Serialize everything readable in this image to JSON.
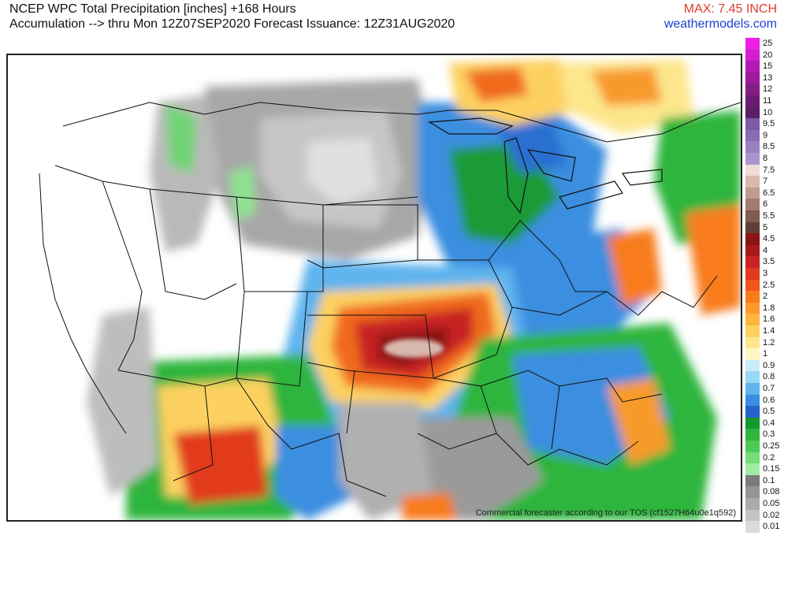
{
  "header": {
    "title_line1": "NCEP WPC Total Precipitation [inches] +168 Hours",
    "title_line2": "Accumulation --> thru Mon 12Z07SEP2020   Forecast Issuance: 12Z31AUG2020",
    "max_label": "MAX: 7.45 INCH",
    "site_label": "weathermodels.com"
  },
  "map": {
    "tos_note": "Commercial forecaster according to our TOS (cf1527H64u0e1q592)"
  },
  "legend": {
    "items": [
      {
        "label": "25",
        "color": "#ee1ee8"
      },
      {
        "label": "20",
        "color": "#d31dcf"
      },
      {
        "label": "15",
        "color": "#b619b3"
      },
      {
        "label": "13",
        "color": "#9c1a9c"
      },
      {
        "label": "12",
        "color": "#841d86"
      },
      {
        "label": "11",
        "color": "#6b1c73"
      },
      {
        "label": "10",
        "color": "#5a1e66"
      },
      {
        "label": "9.5",
        "color": "#7b5aa6"
      },
      {
        "label": "9",
        "color": "#8a6cb4"
      },
      {
        "label": "8.5",
        "color": "#9a80c0"
      },
      {
        "label": "8",
        "color": "#ab95cd"
      },
      {
        "label": "7.5",
        "color": "#efdcd3"
      },
      {
        "label": "7",
        "color": "#d8b8ad"
      },
      {
        "label": "6.5",
        "color": "#c09a8c"
      },
      {
        "label": "6",
        "color": "#a47b6f"
      },
      {
        "label": "5.5",
        "color": "#7f5b52"
      },
      {
        "label": "5",
        "color": "#5f3f38"
      },
      {
        "label": "4.5",
        "color": "#8a1414"
      },
      {
        "label": "4",
        "color": "#a81a1a"
      },
      {
        "label": "3.5",
        "color": "#c82424"
      },
      {
        "label": "3",
        "color": "#e23a1f"
      },
      {
        "label": "2.5",
        "color": "#f0561a"
      },
      {
        "label": "2",
        "color": "#f87b1e"
      },
      {
        "label": "1.8",
        "color": "#fc9a2a"
      },
      {
        "label": "1.6",
        "color": "#fdb53c"
      },
      {
        "label": "1.4",
        "color": "#fdd160"
      },
      {
        "label": "1.2",
        "color": "#fde68c"
      },
      {
        "label": "1",
        "color": "#fef6c4"
      },
      {
        "label": "0.9",
        "color": "#c8ecfb"
      },
      {
        "label": "0.8",
        "color": "#98d8f6"
      },
      {
        "label": "0.7",
        "color": "#5fb4ee"
      },
      {
        "label": "0.6",
        "color": "#3a8ee0"
      },
      {
        "label": "0.5",
        "color": "#2464cc"
      },
      {
        "label": "0.4",
        "color": "#149a2a"
      },
      {
        "label": "0.3",
        "color": "#2fb53e"
      },
      {
        "label": "0.25",
        "color": "#4dca55"
      },
      {
        "label": "0.2",
        "color": "#74dc78"
      },
      {
        "label": "0.15",
        "color": "#a2eba3"
      },
      {
        "label": "0.1",
        "color": "#7b7b7b"
      },
      {
        "label": "0.08",
        "color": "#959595"
      },
      {
        "label": "0.05",
        "color": "#ababab"
      },
      {
        "label": "0.02",
        "color": "#c3c3c3"
      },
      {
        "label": "0.01",
        "color": "#dadada"
      }
    ]
  }
}
